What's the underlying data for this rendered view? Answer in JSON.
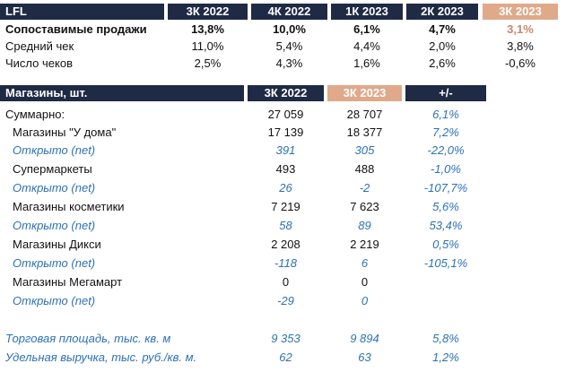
{
  "lfl": {
    "header": [
      "LFL",
      "3К 2022",
      "4К 2022",
      "1К 2023",
      "2К 2023",
      "3К 2023"
    ],
    "rows": [
      {
        "label": "Сопоставимые продажи",
        "values": [
          "13,8%",
          "10,0%",
          "6,1%",
          "4,7%",
          "3,1%"
        ]
      },
      {
        "label": "Средний чек",
        "values": [
          "11,0%",
          "5,4%",
          "4,4%",
          "2,0%",
          "3,8%"
        ]
      },
      {
        "label": "Число чеков",
        "values": [
          "2,5%",
          "4,3%",
          "1,6%",
          "2,6%",
          "-0,6%"
        ]
      }
    ]
  },
  "stores": {
    "header": [
      "Магазины, шт.",
      "3К 2022",
      "3К 2023",
      "+/-"
    ],
    "rows": [
      {
        "label": "Суммарно:",
        "values": [
          "27 059",
          "28 707",
          "6,1%"
        ]
      },
      {
        "label": "Магазины \"У дома\"",
        "values": [
          "17 139",
          "18 377",
          "7,2%"
        ]
      },
      {
        "label": "Открыто (net)",
        "values": [
          "391",
          "305",
          "-22,0%"
        ]
      },
      {
        "label": "Супермаркеты",
        "values": [
          "493",
          "488",
          "-1,0%"
        ]
      },
      {
        "label": "Открыто (net)",
        "values": [
          "26",
          "-2",
          "-107,7%"
        ]
      },
      {
        "label": "Магазины косметики",
        "values": [
          "7 219",
          "7 623",
          "5,6%"
        ]
      },
      {
        "label": "Открыто (net)",
        "values": [
          "58",
          "89",
          "53,4%"
        ]
      },
      {
        "label": "Магазины Дикси",
        "values": [
          "2 208",
          "2 219",
          "0,5%"
        ]
      },
      {
        "label": "Открыто (net)",
        "values": [
          "-118",
          "6",
          "-105,1%"
        ]
      },
      {
        "label": "Магазины Мегамарт",
        "values": [
          "0",
          "0",
          ""
        ]
      },
      {
        "label": "Открыто (net)",
        "values": [
          "-29",
          "0",
          ""
        ]
      }
    ],
    "footer": [
      {
        "label": "Торговая площадь, тыс. кв. м",
        "values": [
          "9 353",
          "9 894",
          "5,8%"
        ]
      },
      {
        "label": "Удельная выручка, тыс. руб./кв. м.",
        "values": [
          "62",
          "63",
          "1,2%"
        ]
      }
    ]
  },
  "colors": {
    "header_bg": "#1f2a44",
    "accent_peach": "#dfa98a",
    "italic_blue": "#2c71b8"
  }
}
